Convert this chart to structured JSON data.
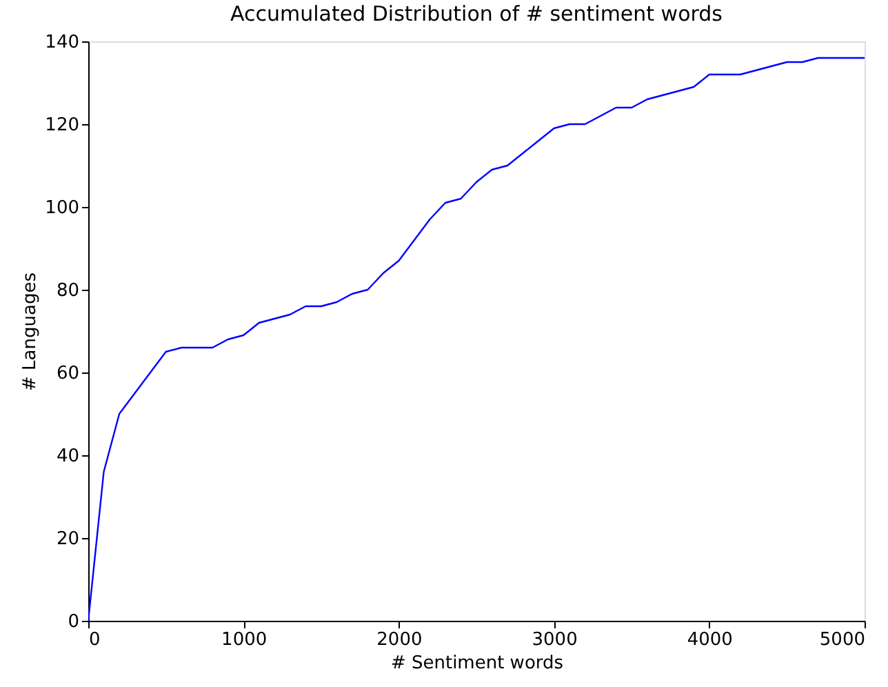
{
  "chart_data": {
    "type": "line",
    "title": "Accumulated Distribution of # sentiment words",
    "xlabel": "# Sentiment words",
    "ylabel": "# Languages",
    "x": [
      0,
      100,
      200,
      300,
      400,
      500,
      600,
      700,
      800,
      900,
      1000,
      1100,
      1200,
      1300,
      1400,
      1500,
      1600,
      1700,
      1800,
      1900,
      2000,
      2100,
      2200,
      2300,
      2400,
      2500,
      2600,
      2700,
      2800,
      2900,
      3000,
      3100,
      3200,
      3300,
      3400,
      3500,
      3600,
      3700,
      3800,
      3900,
      4000,
      4100,
      4200,
      4300,
      4400,
      4500,
      4600,
      4700,
      4800,
      4900,
      5000
    ],
    "series": [
      {
        "color": "#0000ff",
        "values": [
          0,
          36,
          50,
          55,
          60,
          65,
          66,
          66,
          66,
          68,
          69,
          72,
          73,
          74,
          76,
          76,
          77,
          79,
          80,
          84,
          87,
          92,
          97,
          101,
          102,
          106,
          109,
          110,
          113,
          116,
          119,
          120,
          120,
          122,
          124,
          124,
          126,
          127,
          128,
          129,
          132,
          132,
          132,
          133,
          134,
          135,
          135,
          136,
          136,
          136,
          136
        ]
      }
    ],
    "xlim": [
      0,
      5000
    ],
    "ylim": [
      0,
      140
    ],
    "xticks": [
      0,
      1000,
      2000,
      3000,
      4000,
      5000
    ],
    "yticks": [
      0,
      20,
      40,
      60,
      80,
      100,
      120,
      140
    ],
    "grid": false,
    "legend": false,
    "marker": "none",
    "line_style": "solid"
  }
}
